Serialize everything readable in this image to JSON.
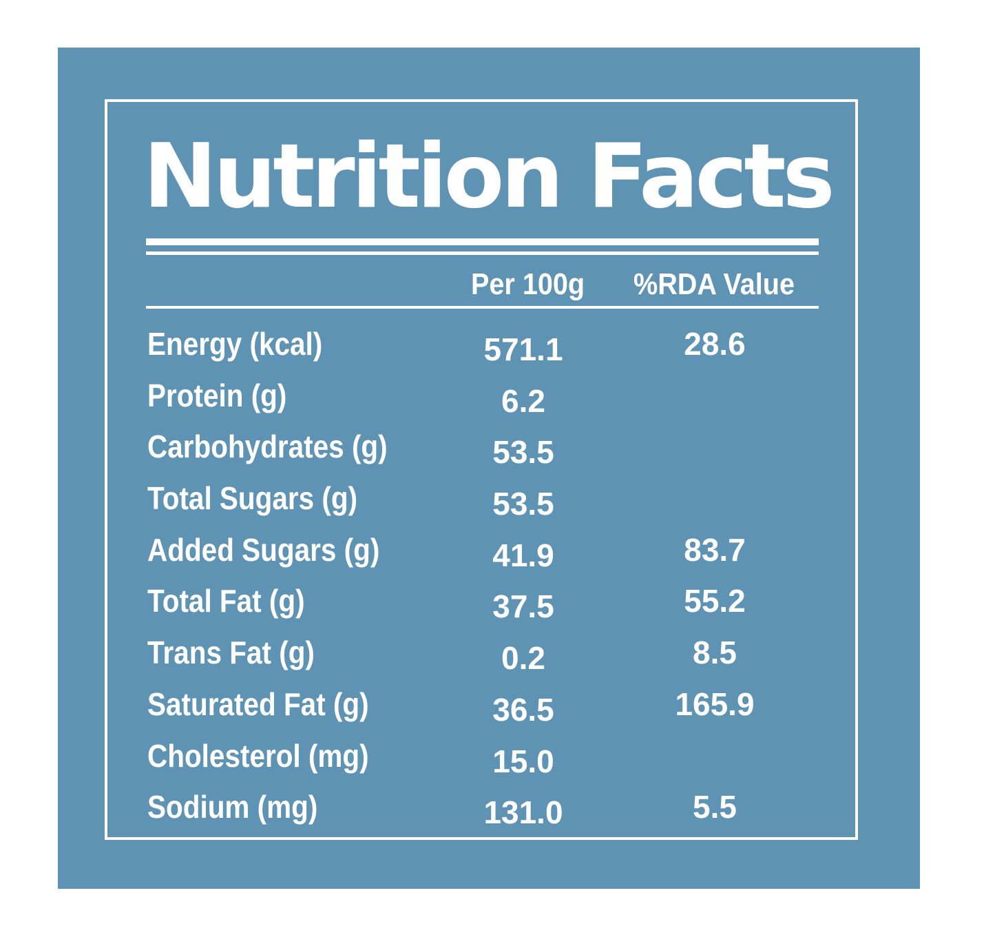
{
  "title": "Nutrition Facts",
  "columns": {
    "per_100g": "Per 100g",
    "rda": "%RDA Value"
  },
  "rows": [
    {
      "name": "Energy (kcal)",
      "per_100g": "571.1",
      "rda": "28.6"
    },
    {
      "name": "Protein (g)",
      "per_100g": "6.2",
      "rda": ""
    },
    {
      "name": "Carbohydrates (g)",
      "per_100g": "53.5",
      "rda": ""
    },
    {
      "name": "Total Sugars (g)",
      "per_100g": "53.5",
      "rda": ""
    },
    {
      "name": "Added Sugars (g)",
      "per_100g": "41.9",
      "rda": "83.7"
    },
    {
      "name": "Total Fat (g)",
      "per_100g": "37.5",
      "rda": "55.2"
    },
    {
      "name": "Trans Fat (g)",
      "per_100g": "0.2",
      "rda": "8.5"
    },
    {
      "name": "Saturated Fat (g)",
      "per_100g": "36.5",
      "rda": "165.9"
    },
    {
      "name": "Cholesterol (mg)",
      "per_100g": "15.0",
      "rda": ""
    },
    {
      "name": "Sodium (mg)",
      "per_100g": "131.0",
      "rda": "5.5"
    }
  ],
  "colors": {
    "panel": "#5f93b3",
    "text": "#ffffff",
    "page": "#ffffff"
  }
}
